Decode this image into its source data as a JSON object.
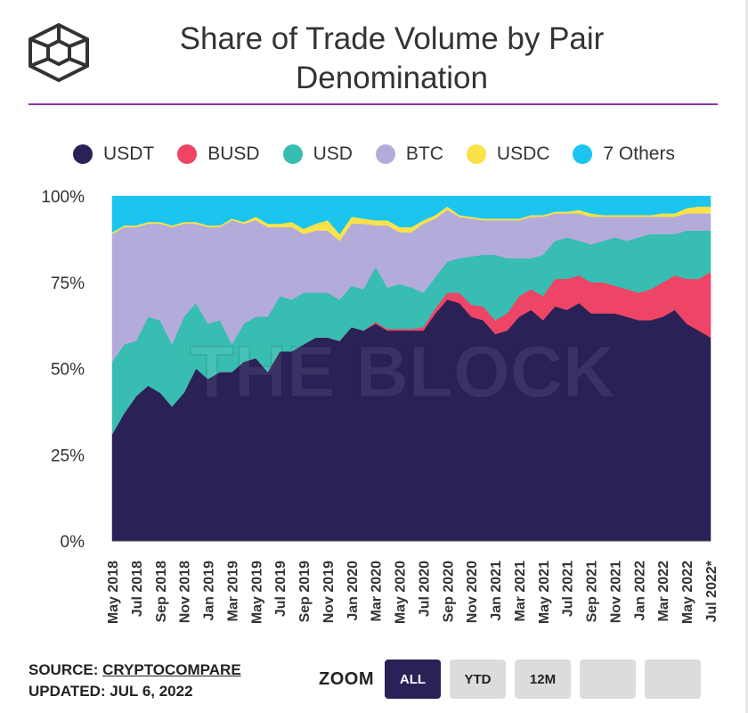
{
  "header": {
    "title_line1": "Share of Trade Volume by Pair",
    "title_line2": "Denomination"
  },
  "colors": {
    "USDT": "#2a2157",
    "BUSD": "#ee4466",
    "USD": "#37bdb1",
    "BTC": "#b3acdb",
    "USDC": "#fbe24a",
    "7 Others": "#1bc5ef",
    "accent_divider": "#8c33a8"
  },
  "watermark": "THE BLOCK",
  "chart_data": {
    "type": "area",
    "stacked": true,
    "title": "Share of Trade Volume by Pair Denomination",
    "ylim": [
      0,
      100
    ],
    "yticks": [
      "0%",
      "25%",
      "50%",
      "75%",
      "100%"
    ],
    "xtick_labels": [
      "May 2018",
      "Jul 2018",
      "Sep 2018",
      "Nov 2018",
      "Jan 2019",
      "Mar 2019",
      "May 2019",
      "Jul 2019",
      "Sep 2019",
      "Nov 2019",
      "Jan 2020",
      "Mar 2020",
      "May 2020",
      "Jul 2020",
      "Sep 2020",
      "Nov 2020",
      "Jan 2021",
      "Mar 2021",
      "May 2021",
      "Jul 2021",
      "Sep 2021",
      "Nov 2021",
      "Jan 2022",
      "Mar 2022",
      "May 2022",
      "Jul 2022*"
    ],
    "x": [
      "2018-05",
      "2018-06",
      "2018-07",
      "2018-08",
      "2018-09",
      "2018-10",
      "2018-11",
      "2018-12",
      "2019-01",
      "2019-02",
      "2019-03",
      "2019-04",
      "2019-05",
      "2019-06",
      "2019-07",
      "2019-08",
      "2019-09",
      "2019-10",
      "2019-11",
      "2019-12",
      "2020-01",
      "2020-02",
      "2020-03",
      "2020-04",
      "2020-05",
      "2020-06",
      "2020-07",
      "2020-08",
      "2020-09",
      "2020-10",
      "2020-11",
      "2020-12",
      "2021-01",
      "2021-02",
      "2021-03",
      "2021-04",
      "2021-05",
      "2021-06",
      "2021-07",
      "2021-08",
      "2021-09",
      "2021-10",
      "2021-11",
      "2021-12",
      "2022-01",
      "2022-02",
      "2022-03",
      "2022-04",
      "2022-05",
      "2022-06",
      "2022-07"
    ],
    "legend": [
      "USDT",
      "BUSD",
      "USD",
      "BTC",
      "USDC",
      "7 Others"
    ],
    "series": [
      {
        "name": "USDT",
        "values": [
          31,
          37,
          42,
          45,
          43,
          39,
          43,
          50,
          47,
          49,
          49,
          52,
          53,
          49,
          55,
          55,
          57,
          59,
          59,
          58,
          62,
          61,
          63,
          61,
          61,
          61,
          61,
          66,
          70,
          69,
          65,
          64,
          60,
          61,
          65,
          67,
          64,
          68,
          67,
          69,
          66,
          66,
          66,
          65,
          64,
          64,
          65,
          67,
          63,
          61,
          59
        ]
      },
      {
        "name": "BUSD",
        "values": [
          0,
          0,
          0,
          0,
          0,
          0,
          0,
          0,
          0,
          0,
          0,
          0,
          0,
          0,
          0,
          0,
          0,
          0,
          0,
          0,
          0,
          0,
          0.5,
          0.5,
          0.5,
          0.5,
          1,
          1.5,
          2,
          3,
          3.5,
          4,
          4,
          5,
          6,
          6,
          7,
          8,
          9,
          8,
          9,
          9,
          8,
          8,
          8,
          9,
          10,
          10,
          13,
          15,
          19
        ]
      },
      {
        "name": "USD",
        "values": [
          21,
          20,
          16,
          20,
          21,
          18,
          22,
          19,
          16,
          15,
          8,
          11,
          12,
          16,
          16,
          15,
          15,
          13,
          13,
          12,
          12,
          12,
          16,
          12,
          13,
          12,
          10,
          9,
          9,
          10,
          14,
          15,
          19,
          16,
          11,
          9,
          12,
          11,
          12,
          10,
          11,
          12,
          14,
          14,
          16,
          16,
          14,
          12,
          14,
          14,
          12
        ]
      },
      {
        "name": "BTC",
        "values": [
          37,
          34,
          33,
          27,
          28,
          34,
          27,
          23,
          28,
          27,
          36,
          29,
          28,
          26,
          20,
          21,
          17,
          18,
          18,
          17,
          18,
          19,
          12,
          18,
          15,
          16,
          20,
          17,
          15,
          12,
          11,
          10,
          10,
          11,
          11,
          12,
          11,
          8,
          7,
          8,
          8,
          7,
          6,
          7,
          6,
          5,
          5,
          5,
          5,
          5,
          5
        ]
      },
      {
        "name": "USDC",
        "values": [
          0.5,
          0.5,
          0.5,
          0.5,
          0.5,
          0.5,
          0.5,
          0.5,
          0.5,
          0.5,
          0.5,
          0.5,
          1,
          1,
          1,
          1.5,
          1.5,
          2,
          3,
          2,
          2,
          1.5,
          1.5,
          1.5,
          1.5,
          1.5,
          1,
          1,
          1,
          0.5,
          0.5,
          0.5,
          0.5,
          0.5,
          0.5,
          0.5,
          0.5,
          0.5,
          0.5,
          1,
          1,
          0.5,
          0.5,
          0.5,
          0.5,
          0.5,
          1,
          1,
          1.5,
          2,
          2
        ]
      },
      {
        "name": "7 Others",
        "values": [
          10.5,
          8.5,
          8.5,
          7.5,
          7.5,
          8.5,
          7.5,
          7.5,
          8.5,
          8.5,
          6.5,
          7.5,
          6,
          8,
          8,
          7.5,
          9.5,
          8,
          7,
          11,
          6,
          6.5,
          7,
          7,
          9,
          9,
          7,
          5.5,
          3,
          5.5,
          6,
          6.5,
          6.5,
          6.5,
          6.5,
          5.5,
          5.5,
          4.5,
          4.5,
          4,
          5,
          5.5,
          5.5,
          5.5,
          5.5,
          5.5,
          5,
          5,
          3.5,
          3,
          3
        ]
      }
    ]
  },
  "footer": {
    "source_label": "SOURCE: ",
    "source_name": "CRYPTOCOMPARE",
    "updated": "UPDATED: JUL 6, 2022"
  },
  "zoom": {
    "label": "ZOOM",
    "buttons": [
      "ALL",
      "YTD",
      "12M",
      "",
      ""
    ],
    "active": "ALL"
  }
}
